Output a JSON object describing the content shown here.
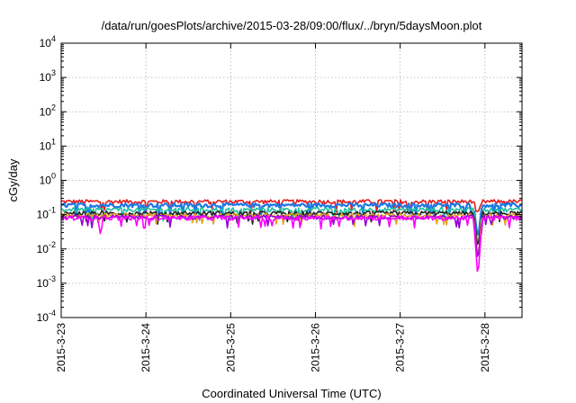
{
  "chart_data": {
    "type": "line",
    "title": "/data/run/goesPlots/archive/2015-03-28/09:00/flux/../bryn/5daysMoon.plot",
    "xlabel": "Coordinated Universal Time (UTC)",
    "ylabel": "cGy/day",
    "yscale": "log",
    "ylim": [
      0.0001,
      10000
    ],
    "xlim": [
      "2015-03-23T00:00",
      "2015-03-28T10:30"
    ],
    "y_ticks": [
      {
        "base": "10",
        "exp": "-4",
        "value": 0.0001
      },
      {
        "base": "10",
        "exp": "-3",
        "value": 0.001
      },
      {
        "base": "10",
        "exp": "-2",
        "value": 0.01
      },
      {
        "base": "10",
        "exp": "-1",
        "value": 0.1
      },
      {
        "base": "10",
        "exp": "0",
        "value": 1
      },
      {
        "base": "10",
        "exp": "1",
        "value": 10
      },
      {
        "base": "10",
        "exp": "2",
        "value": 100
      },
      {
        "base": "10",
        "exp": "3",
        "value": 1000
      },
      {
        "base": "10",
        "exp": "4",
        "value": 10000
      }
    ],
    "x_ticks": [
      {
        "label": "2015-3-23",
        "value": "2015-03-23T00:00"
      },
      {
        "label": "2015-3-24",
        "value": "2015-03-24T00:00"
      },
      {
        "label": "2015-3-25",
        "value": "2015-03-25T00:00"
      },
      {
        "label": "2015-3-26",
        "value": "2015-03-26T00:00"
      },
      {
        "label": "2015-3-27",
        "value": "2015-03-27T00:00"
      },
      {
        "label": "2015-3-28",
        "value": "2015-03-28T00:00"
      }
    ],
    "grid": true,
    "series": [
      {
        "color": "#e41a1c",
        "base_value": 0.24,
        "dip": {
          "at": "2015-03-27T22:00",
          "min": 0.11
        }
      },
      {
        "color": "#1f78e4",
        "base_value": 0.19,
        "dip": {
          "at": "2015-03-27T22:00",
          "min": 0.02
        }
      },
      {
        "color": "#1fbf9f",
        "base_value": 0.14,
        "dip": {
          "at": "2015-03-27T22:00",
          "min": 0.01
        }
      },
      {
        "color": "#222222",
        "base_value": 0.11,
        "dip": {
          "at": "2015-03-27T22:00",
          "min": 0.01
        }
      },
      {
        "color": "#e6a020",
        "base_value": 0.095,
        "dip": {
          "at": "2015-03-27T22:00",
          "min": 0.005
        }
      },
      {
        "color": "#9400d3",
        "base_value": 0.085,
        "dip": {
          "at": "2015-03-27T22:00",
          "min": 0.004
        }
      },
      {
        "color": "#ff00ff",
        "base_value": 0.08,
        "dip": {
          "at": "2015-03-27T22:00",
          "min": 0.0013
        },
        "spike_low": {
          "at": "2015-03-23T11:00",
          "min": 0.024
        }
      }
    ]
  }
}
